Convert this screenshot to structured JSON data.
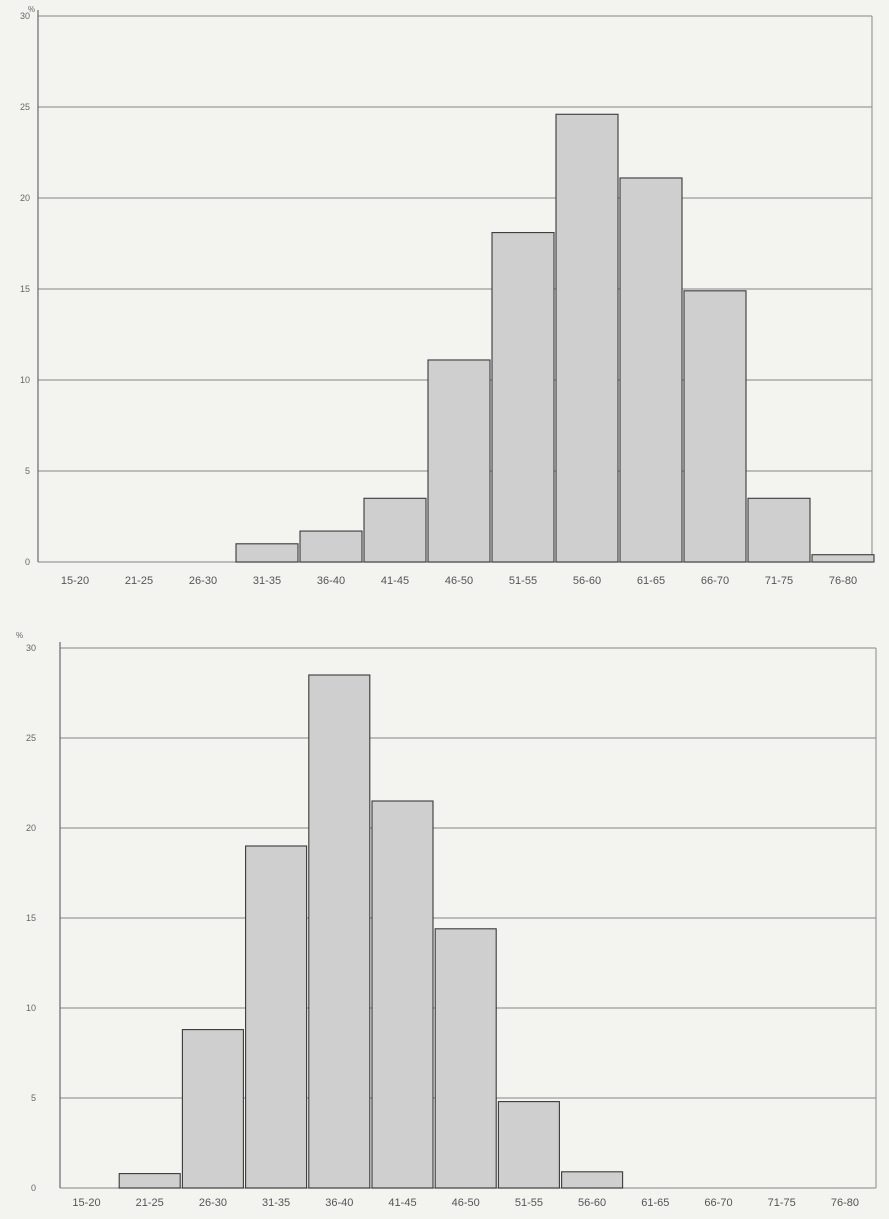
{
  "chart_data": [
    {
      "type": "bar",
      "ylabel": "%",
      "ylim": [
        0,
        30
      ],
      "yticks": [
        "0",
        "5",
        "10",
        "15",
        "20",
        "25",
        "30"
      ],
      "grid": true,
      "categories": [
        "15-20",
        "21-25",
        "26-30",
        "31-35",
        "36-40",
        "41-45",
        "46-50",
        "51-55",
        "56-60",
        "61-65",
        "66-70",
        "71-75",
        "76-80"
      ],
      "values": [
        0,
        0,
        0,
        1.0,
        1.7,
        3.5,
        11.1,
        18.1,
        24.6,
        21.1,
        14.9,
        3.5,
        0.4
      ]
    },
    {
      "type": "bar",
      "ylabel": "%",
      "ylim": [
        0,
        30
      ],
      "yticks": [
        "0",
        "5",
        "10",
        "15",
        "20",
        "25",
        "30"
      ],
      "grid": true,
      "categories": [
        "15-20",
        "21-25",
        "26-30",
        "31-35",
        "36-40",
        "41-45",
        "46-50",
        "51-55",
        "56-60",
        "61-65",
        "66-70",
        "71-75",
        "76-80"
      ],
      "values": [
        0,
        0.8,
        8.8,
        19.0,
        28.5,
        21.5,
        14.4,
        4.8,
        0.9,
        0,
        0,
        0,
        0
      ]
    }
  ]
}
